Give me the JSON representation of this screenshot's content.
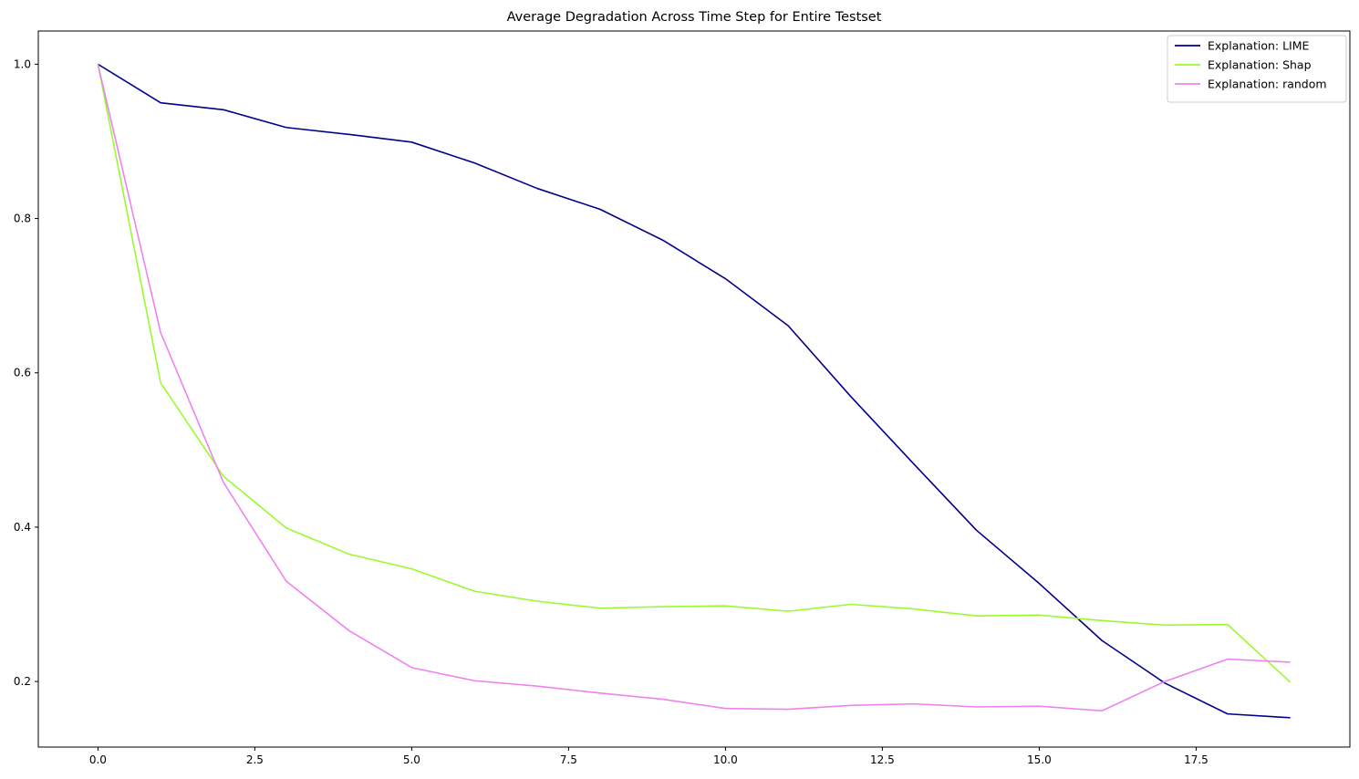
{
  "chart_data": {
    "type": "line",
    "title": "Average Degradation Across Time Step for Entire Testset",
    "xlabel": "",
    "ylabel": "",
    "xlim": [
      -0.95,
      19.95
    ],
    "ylim": [
      0.115,
      1.043
    ],
    "xticks": [
      0.0,
      2.5,
      5.0,
      7.5,
      10.0,
      12.5,
      15.0,
      17.5
    ],
    "xtick_labels": [
      "0.0",
      "2.5",
      "5.0",
      "7.5",
      "10.0",
      "12.5",
      "15.0",
      "17.5"
    ],
    "yticks": [
      0.2,
      0.4,
      0.6,
      0.8,
      1.0
    ],
    "ytick_labels": [
      "0.2",
      "0.4",
      "0.6",
      "0.8",
      "1.0"
    ],
    "grid": false,
    "legend_position": "top-right",
    "x": [
      0,
      1,
      2,
      3,
      4,
      5,
      6,
      7,
      8,
      9,
      10,
      11,
      12,
      13,
      14,
      15,
      16,
      17,
      18,
      19
    ],
    "series": [
      {
        "name": "Explanation: LIME",
        "color": "#00008b",
        "values": [
          1.0,
          0.95,
          0.941,
          0.918,
          0.909,
          0.899,
          0.872,
          0.839,
          0.812,
          0.772,
          0.722,
          0.661,
          0.569,
          0.482,
          0.396,
          0.327,
          0.253,
          0.198,
          0.158,
          0.153
        ]
      },
      {
        "name": "Explanation: Shap",
        "color": "#9afa2e",
        "values": [
          1.0,
          0.587,
          0.466,
          0.399,
          0.365,
          0.346,
          0.317,
          0.304,
          0.295,
          0.297,
          0.298,
          0.291,
          0.3,
          0.294,
          0.285,
          0.286,
          0.279,
          0.273,
          0.274,
          0.199
        ]
      },
      {
        "name": "Explanation: random",
        "color": "#ee82ee",
        "values": [
          1.0,
          0.652,
          0.458,
          0.33,
          0.266,
          0.218,
          0.201,
          0.194,
          0.185,
          0.177,
          0.165,
          0.164,
          0.169,
          0.171,
          0.167,
          0.168,
          0.162,
          0.2,
          0.229,
          0.225
        ]
      }
    ]
  }
}
